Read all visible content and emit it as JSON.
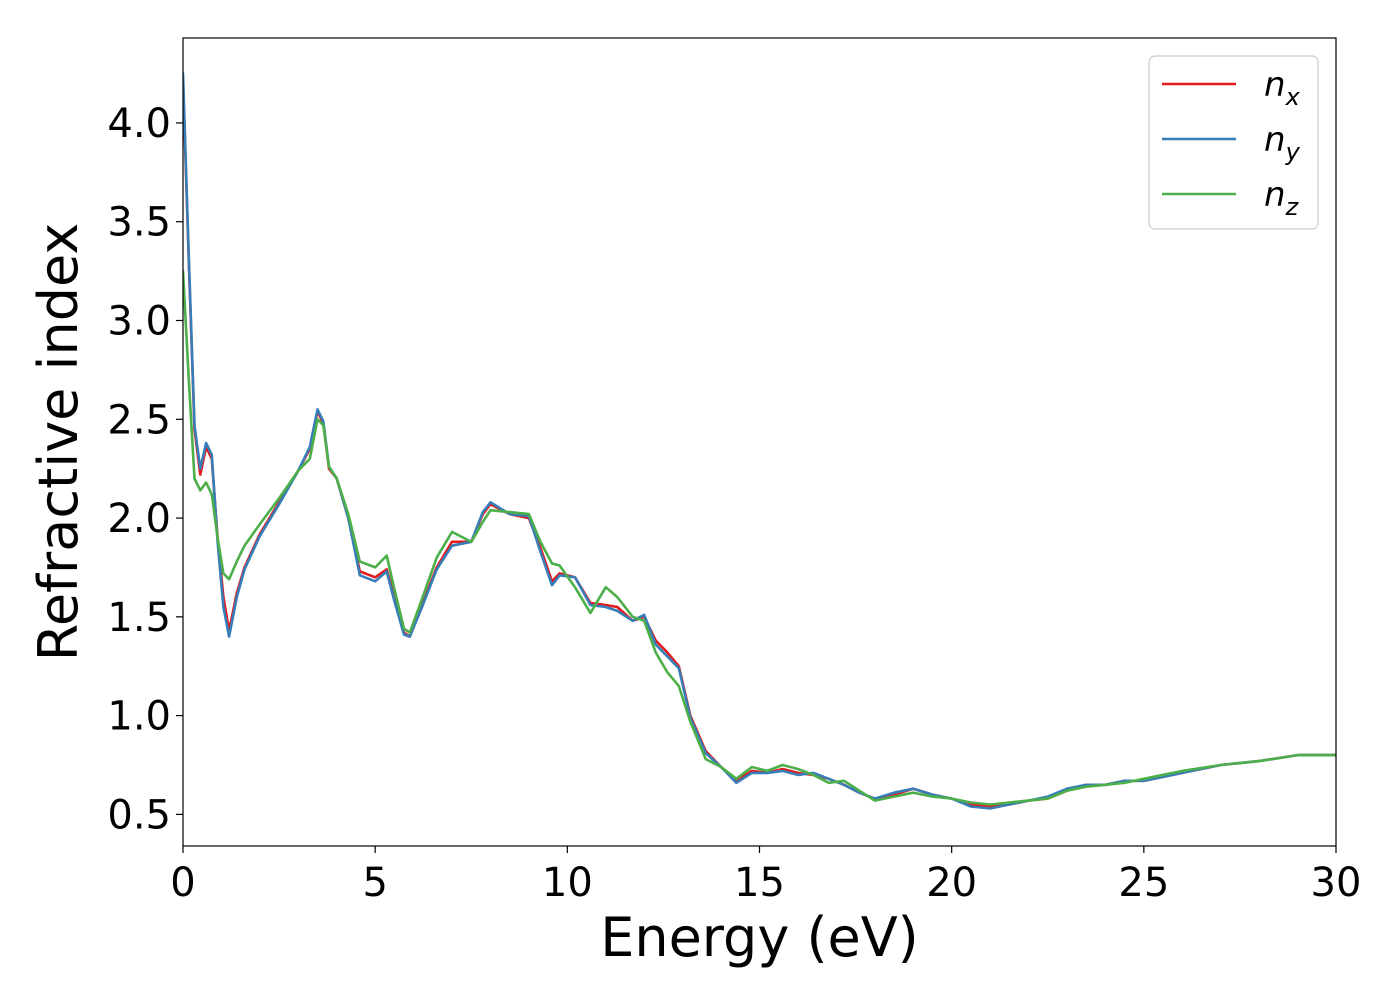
{
  "chart_data": {
    "type": "line",
    "title": "",
    "xlabel": "Energy (eV)",
    "ylabel": "Refractive index",
    "xlim": [
      0,
      30
    ],
    "ylim": [
      0.34,
      4.43
    ],
    "xticks": [
      0,
      5,
      10,
      15,
      20,
      25,
      30
    ],
    "xtick_labels": [
      "0",
      "5",
      "10",
      "15",
      "20",
      "25",
      "30"
    ],
    "yticks": [
      0.5,
      1.0,
      1.5,
      2.0,
      2.5,
      3.0,
      3.5,
      4.0
    ],
    "ytick_labels": [
      "0.5",
      "1.0",
      "1.5",
      "2.0",
      "2.5",
      "3.0",
      "3.5",
      "4.0"
    ],
    "grid": false,
    "legend_position": "top-right",
    "series": [
      {
        "name": "n_x",
        "label_base": "n",
        "label_sub": "x",
        "color": "#e41a1c",
        "points": [
          [
            0,
            4.22
          ],
          [
            0.15,
            3.3
          ],
          [
            0.3,
            2.45
          ],
          [
            0.45,
            2.22
          ],
          [
            0.6,
            2.36
          ],
          [
            0.75,
            2.3
          ],
          [
            0.9,
            1.9
          ],
          [
            1.05,
            1.6
          ],
          [
            1.2,
            1.43
          ],
          [
            1.4,
            1.62
          ],
          [
            1.6,
            1.75
          ],
          [
            2.0,
            1.92
          ],
          [
            2.5,
            2.08
          ],
          [
            3.0,
            2.24
          ],
          [
            3.3,
            2.35
          ],
          [
            3.5,
            2.54
          ],
          [
            3.65,
            2.48
          ],
          [
            3.8,
            2.25
          ],
          [
            4.0,
            2.2
          ],
          [
            4.3,
            2.0
          ],
          [
            4.6,
            1.73
          ],
          [
            5.0,
            1.7
          ],
          [
            5.3,
            1.74
          ],
          [
            5.5,
            1.6
          ],
          [
            5.75,
            1.42
          ],
          [
            5.9,
            1.4
          ],
          [
            6.2,
            1.55
          ],
          [
            6.6,
            1.75
          ],
          [
            7.0,
            1.88
          ],
          [
            7.5,
            1.88
          ],
          [
            7.8,
            2.02
          ],
          [
            8.0,
            2.07
          ],
          [
            8.5,
            2.02
          ],
          [
            9.0,
            2.0
          ],
          [
            9.3,
            1.85
          ],
          [
            9.6,
            1.68
          ],
          [
            9.8,
            1.72
          ],
          [
            10.2,
            1.7
          ],
          [
            10.6,
            1.57
          ],
          [
            11.0,
            1.56
          ],
          [
            11.3,
            1.55
          ],
          [
            11.7,
            1.48
          ],
          [
            12.0,
            1.5
          ],
          [
            12.3,
            1.38
          ],
          [
            12.6,
            1.32
          ],
          [
            12.9,
            1.25
          ],
          [
            13.2,
            1.0
          ],
          [
            13.6,
            0.82
          ],
          [
            14.0,
            0.74
          ],
          [
            14.4,
            0.67
          ],
          [
            14.8,
            0.72
          ],
          [
            15.2,
            0.71
          ],
          [
            15.6,
            0.73
          ],
          [
            16.0,
            0.71
          ],
          [
            16.4,
            0.7
          ],
          [
            16.8,
            0.68
          ],
          [
            17.2,
            0.65
          ],
          [
            17.6,
            0.61
          ],
          [
            18.0,
            0.58
          ],
          [
            18.5,
            0.6
          ],
          [
            19.0,
            0.63
          ],
          [
            19.5,
            0.6
          ],
          [
            20.0,
            0.58
          ],
          [
            20.5,
            0.55
          ],
          [
            21.0,
            0.54
          ],
          [
            21.5,
            0.55
          ],
          [
            22.0,
            0.57
          ],
          [
            22.5,
            0.58
          ],
          [
            23.0,
            0.62
          ],
          [
            23.5,
            0.65
          ],
          [
            24.0,
            0.65
          ],
          [
            24.5,
            0.67
          ],
          [
            25.0,
            0.67
          ],
          [
            26.0,
            0.71
          ],
          [
            27.0,
            0.75
          ],
          [
            28.0,
            0.77
          ],
          [
            29.0,
            0.8
          ],
          [
            30.0,
            0.8
          ]
        ]
      },
      {
        "name": "n_y",
        "label_base": "n",
        "label_sub": "y",
        "color": "#377eb8",
        "points": [
          [
            0,
            4.25
          ],
          [
            0.15,
            3.32
          ],
          [
            0.3,
            2.47
          ],
          [
            0.45,
            2.25
          ],
          [
            0.6,
            2.38
          ],
          [
            0.75,
            2.32
          ],
          [
            0.9,
            1.88
          ],
          [
            1.05,
            1.55
          ],
          [
            1.2,
            1.4
          ],
          [
            1.4,
            1.6
          ],
          [
            1.6,
            1.74
          ],
          [
            2.0,
            1.91
          ],
          [
            2.5,
            2.07
          ],
          [
            3.0,
            2.24
          ],
          [
            3.3,
            2.36
          ],
          [
            3.5,
            2.55
          ],
          [
            3.65,
            2.49
          ],
          [
            3.8,
            2.26
          ],
          [
            4.0,
            2.2
          ],
          [
            4.3,
            2.0
          ],
          [
            4.6,
            1.71
          ],
          [
            5.0,
            1.68
          ],
          [
            5.3,
            1.73
          ],
          [
            5.5,
            1.58
          ],
          [
            5.75,
            1.41
          ],
          [
            5.9,
            1.4
          ],
          [
            6.2,
            1.54
          ],
          [
            6.6,
            1.74
          ],
          [
            7.0,
            1.86
          ],
          [
            7.5,
            1.88
          ],
          [
            7.8,
            2.03
          ],
          [
            8.0,
            2.08
          ],
          [
            8.5,
            2.02
          ],
          [
            9.0,
            2.01
          ],
          [
            9.3,
            1.83
          ],
          [
            9.6,
            1.66
          ],
          [
            9.8,
            1.71
          ],
          [
            10.2,
            1.7
          ],
          [
            10.6,
            1.56
          ],
          [
            11.0,
            1.55
          ],
          [
            11.3,
            1.53
          ],
          [
            11.7,
            1.48
          ],
          [
            12.0,
            1.51
          ],
          [
            12.3,
            1.36
          ],
          [
            12.6,
            1.3
          ],
          [
            12.9,
            1.24
          ],
          [
            13.2,
            0.99
          ],
          [
            13.6,
            0.81
          ],
          [
            14.0,
            0.74
          ],
          [
            14.4,
            0.66
          ],
          [
            14.8,
            0.71
          ],
          [
            15.2,
            0.71
          ],
          [
            15.6,
            0.72
          ],
          [
            16.0,
            0.7
          ],
          [
            16.4,
            0.71
          ],
          [
            16.8,
            0.68
          ],
          [
            17.2,
            0.65
          ],
          [
            17.6,
            0.61
          ],
          [
            18.0,
            0.58
          ],
          [
            18.5,
            0.61
          ],
          [
            19.0,
            0.63
          ],
          [
            19.5,
            0.6
          ],
          [
            20.0,
            0.58
          ],
          [
            20.5,
            0.54
          ],
          [
            21.0,
            0.53
          ],
          [
            21.5,
            0.55
          ],
          [
            22.0,
            0.57
          ],
          [
            22.5,
            0.59
          ],
          [
            23.0,
            0.63
          ],
          [
            23.5,
            0.65
          ],
          [
            24.0,
            0.65
          ],
          [
            24.5,
            0.67
          ],
          [
            25.0,
            0.67
          ],
          [
            26.0,
            0.71
          ],
          [
            27.0,
            0.75
          ],
          [
            28.0,
            0.77
          ],
          [
            29.0,
            0.8
          ],
          [
            30.0,
            0.8
          ]
        ]
      },
      {
        "name": "n_z",
        "label_base": "n",
        "label_sub": "z",
        "color": "#4daf4a",
        "points": [
          [
            0,
            3.25
          ],
          [
            0.15,
            2.7
          ],
          [
            0.3,
            2.2
          ],
          [
            0.45,
            2.14
          ],
          [
            0.6,
            2.18
          ],
          [
            0.75,
            2.12
          ],
          [
            0.9,
            1.9
          ],
          [
            1.05,
            1.72
          ],
          [
            1.2,
            1.69
          ],
          [
            1.4,
            1.78
          ],
          [
            1.6,
            1.86
          ],
          [
            2.0,
            1.97
          ],
          [
            2.5,
            2.1
          ],
          [
            3.0,
            2.24
          ],
          [
            3.3,
            2.3
          ],
          [
            3.5,
            2.5
          ],
          [
            3.65,
            2.47
          ],
          [
            3.8,
            2.26
          ],
          [
            4.0,
            2.2
          ],
          [
            4.3,
            2.02
          ],
          [
            4.6,
            1.78
          ],
          [
            5.0,
            1.75
          ],
          [
            5.3,
            1.81
          ],
          [
            5.5,
            1.64
          ],
          [
            5.75,
            1.44
          ],
          [
            5.9,
            1.42
          ],
          [
            6.2,
            1.58
          ],
          [
            6.6,
            1.8
          ],
          [
            7.0,
            1.93
          ],
          [
            7.5,
            1.88
          ],
          [
            7.8,
            1.98
          ],
          [
            8.0,
            2.04
          ],
          [
            8.5,
            2.03
          ],
          [
            9.0,
            2.02
          ],
          [
            9.3,
            1.88
          ],
          [
            9.6,
            1.77
          ],
          [
            9.8,
            1.76
          ],
          [
            10.2,
            1.65
          ],
          [
            10.6,
            1.52
          ],
          [
            11.0,
            1.65
          ],
          [
            11.3,
            1.6
          ],
          [
            11.7,
            1.5
          ],
          [
            12.0,
            1.48
          ],
          [
            12.3,
            1.32
          ],
          [
            12.6,
            1.22
          ],
          [
            12.9,
            1.15
          ],
          [
            13.2,
            0.97
          ],
          [
            13.6,
            0.78
          ],
          [
            14.0,
            0.74
          ],
          [
            14.4,
            0.68
          ],
          [
            14.8,
            0.74
          ],
          [
            15.2,
            0.72
          ],
          [
            15.6,
            0.75
          ],
          [
            16.0,
            0.73
          ],
          [
            16.4,
            0.7
          ],
          [
            16.8,
            0.66
          ],
          [
            17.2,
            0.67
          ],
          [
            17.6,
            0.62
          ],
          [
            18.0,
            0.57
          ],
          [
            18.5,
            0.59
          ],
          [
            19.0,
            0.61
          ],
          [
            19.5,
            0.59
          ],
          [
            20.0,
            0.58
          ],
          [
            20.5,
            0.56
          ],
          [
            21.0,
            0.55
          ],
          [
            21.5,
            0.56
          ],
          [
            22.0,
            0.57
          ],
          [
            22.5,
            0.58
          ],
          [
            23.0,
            0.62
          ],
          [
            23.5,
            0.64
          ],
          [
            24.0,
            0.65
          ],
          [
            24.5,
            0.66
          ],
          [
            25.0,
            0.68
          ],
          [
            26.0,
            0.72
          ],
          [
            27.0,
            0.75
          ],
          [
            28.0,
            0.77
          ],
          [
            29.0,
            0.8
          ],
          [
            30.0,
            0.8
          ]
        ]
      }
    ]
  }
}
